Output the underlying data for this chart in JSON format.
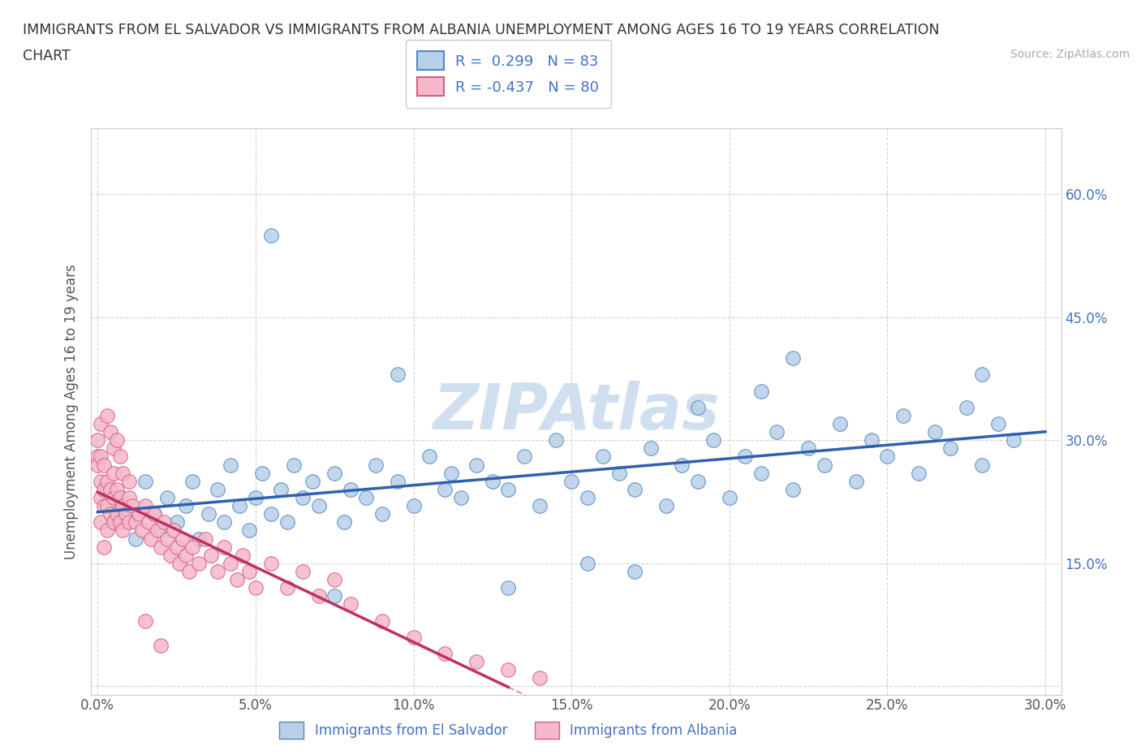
{
  "title_line1": "IMMIGRANTS FROM EL SALVADOR VS IMMIGRANTS FROM ALBANIA UNEMPLOYMENT AMONG AGES 16 TO 19 YEARS CORRELATION",
  "title_line2": "CHART",
  "source_text": "Source: ZipAtlas.com",
  "ylabel": "Unemployment Among Ages 16 to 19 years",
  "xlim": [
    -0.002,
    0.305
  ],
  "ylim": [
    -0.01,
    0.68
  ],
  "xticks": [
    0.0,
    0.05,
    0.1,
    0.15,
    0.2,
    0.25,
    0.3
  ],
  "yticks": [
    0.0,
    0.15,
    0.3,
    0.45,
    0.6
  ],
  "ytick_labels_right": [
    "",
    "15.0%",
    "30.0%",
    "45.0%",
    "60.0%"
  ],
  "xtick_labels": [
    "0.0%",
    "5.0%",
    "10.0%",
    "15.0%",
    "20.0%",
    "25.0%",
    "30.0%"
  ],
  "el_salvador_fill": "#b8d0e8",
  "el_salvador_edge": "#5585c0",
  "albania_fill": "#f5b8cb",
  "albania_edge": "#d06080",
  "el_salvador_line_color": "#3060b0",
  "albania_line_color": "#c03060",
  "legend_R_salvador": " 0.299",
  "legend_N_salvador": "83",
  "legend_R_albania": "-0.437",
  "legend_N_albania": "80",
  "grid_color": "#c8c8c8",
  "watermark": "ZIPAtlas",
  "watermark_color": "#d0dff0",
  "background_color": "#ffffff",
  "el_salvador_x": [
    0.005,
    0.008,
    0.012,
    0.015,
    0.018,
    0.02,
    0.022,
    0.025,
    0.028,
    0.03,
    0.032,
    0.035,
    0.038,
    0.04,
    0.042,
    0.045,
    0.048,
    0.05,
    0.052,
    0.055,
    0.058,
    0.06,
    0.062,
    0.065,
    0.068,
    0.07,
    0.075,
    0.078,
    0.08,
    0.085,
    0.088,
    0.09,
    0.095,
    0.1,
    0.105,
    0.11,
    0.112,
    0.115,
    0.12,
    0.125,
    0.13,
    0.135,
    0.14,
    0.145,
    0.15,
    0.155,
    0.16,
    0.165,
    0.17,
    0.175,
    0.18,
    0.185,
    0.19,
    0.195,
    0.2,
    0.205,
    0.21,
    0.215,
    0.22,
    0.225,
    0.23,
    0.235,
    0.24,
    0.245,
    0.25,
    0.255,
    0.26,
    0.265,
    0.27,
    0.275,
    0.28,
    0.285,
    0.29,
    0.28,
    0.22,
    0.17,
    0.13,
    0.21,
    0.19,
    0.155,
    0.095,
    0.075,
    0.055
  ],
  "el_salvador_y": [
    0.2,
    0.22,
    0.18,
    0.25,
    0.21,
    0.19,
    0.23,
    0.2,
    0.22,
    0.25,
    0.18,
    0.21,
    0.24,
    0.2,
    0.27,
    0.22,
    0.19,
    0.23,
    0.26,
    0.21,
    0.24,
    0.2,
    0.27,
    0.23,
    0.25,
    0.22,
    0.26,
    0.2,
    0.24,
    0.23,
    0.27,
    0.21,
    0.25,
    0.22,
    0.28,
    0.24,
    0.26,
    0.23,
    0.27,
    0.25,
    0.24,
    0.28,
    0.22,
    0.3,
    0.25,
    0.23,
    0.28,
    0.26,
    0.24,
    0.29,
    0.22,
    0.27,
    0.25,
    0.3,
    0.23,
    0.28,
    0.26,
    0.31,
    0.24,
    0.29,
    0.27,
    0.32,
    0.25,
    0.3,
    0.28,
    0.33,
    0.26,
    0.31,
    0.29,
    0.34,
    0.27,
    0.32,
    0.3,
    0.38,
    0.4,
    0.14,
    0.12,
    0.36,
    0.34,
    0.15,
    0.38,
    0.11,
    0.55
  ],
  "albania_x": [
    0.0,
    0.0,
    0.0,
    0.001,
    0.001,
    0.001,
    0.001,
    0.002,
    0.002,
    0.002,
    0.003,
    0.003,
    0.003,
    0.004,
    0.004,
    0.005,
    0.005,
    0.005,
    0.006,
    0.006,
    0.007,
    0.007,
    0.008,
    0.008,
    0.009,
    0.01,
    0.01,
    0.011,
    0.012,
    0.013,
    0.014,
    0.015,
    0.016,
    0.017,
    0.018,
    0.019,
    0.02,
    0.021,
    0.022,
    0.023,
    0.024,
    0.025,
    0.026,
    0.027,
    0.028,
    0.029,
    0.03,
    0.032,
    0.034,
    0.036,
    0.038,
    0.04,
    0.042,
    0.044,
    0.046,
    0.048,
    0.05,
    0.055,
    0.06,
    0.065,
    0.07,
    0.075,
    0.08,
    0.09,
    0.1,
    0.11,
    0.12,
    0.13,
    0.14,
    0.002,
    0.001,
    0.003,
    0.004,
    0.005,
    0.006,
    0.007,
    0.008,
    0.01,
    0.015,
    0.02
  ],
  "albania_y": [
    0.28,
    0.3,
    0.27,
    0.28,
    0.25,
    0.23,
    0.2,
    0.27,
    0.24,
    0.22,
    0.25,
    0.22,
    0.19,
    0.24,
    0.21,
    0.26,
    0.23,
    0.2,
    0.24,
    0.21,
    0.23,
    0.2,
    0.22,
    0.19,
    0.21,
    0.23,
    0.2,
    0.22,
    0.2,
    0.21,
    0.19,
    0.22,
    0.2,
    0.18,
    0.21,
    0.19,
    0.17,
    0.2,
    0.18,
    0.16,
    0.19,
    0.17,
    0.15,
    0.18,
    0.16,
    0.14,
    0.17,
    0.15,
    0.18,
    0.16,
    0.14,
    0.17,
    0.15,
    0.13,
    0.16,
    0.14,
    0.12,
    0.15,
    0.12,
    0.14,
    0.11,
    0.13,
    0.1,
    0.08,
    0.06,
    0.04,
    0.03,
    0.02,
    0.01,
    0.17,
    0.32,
    0.33,
    0.31,
    0.29,
    0.3,
    0.28,
    0.26,
    0.25,
    0.08,
    0.05
  ]
}
